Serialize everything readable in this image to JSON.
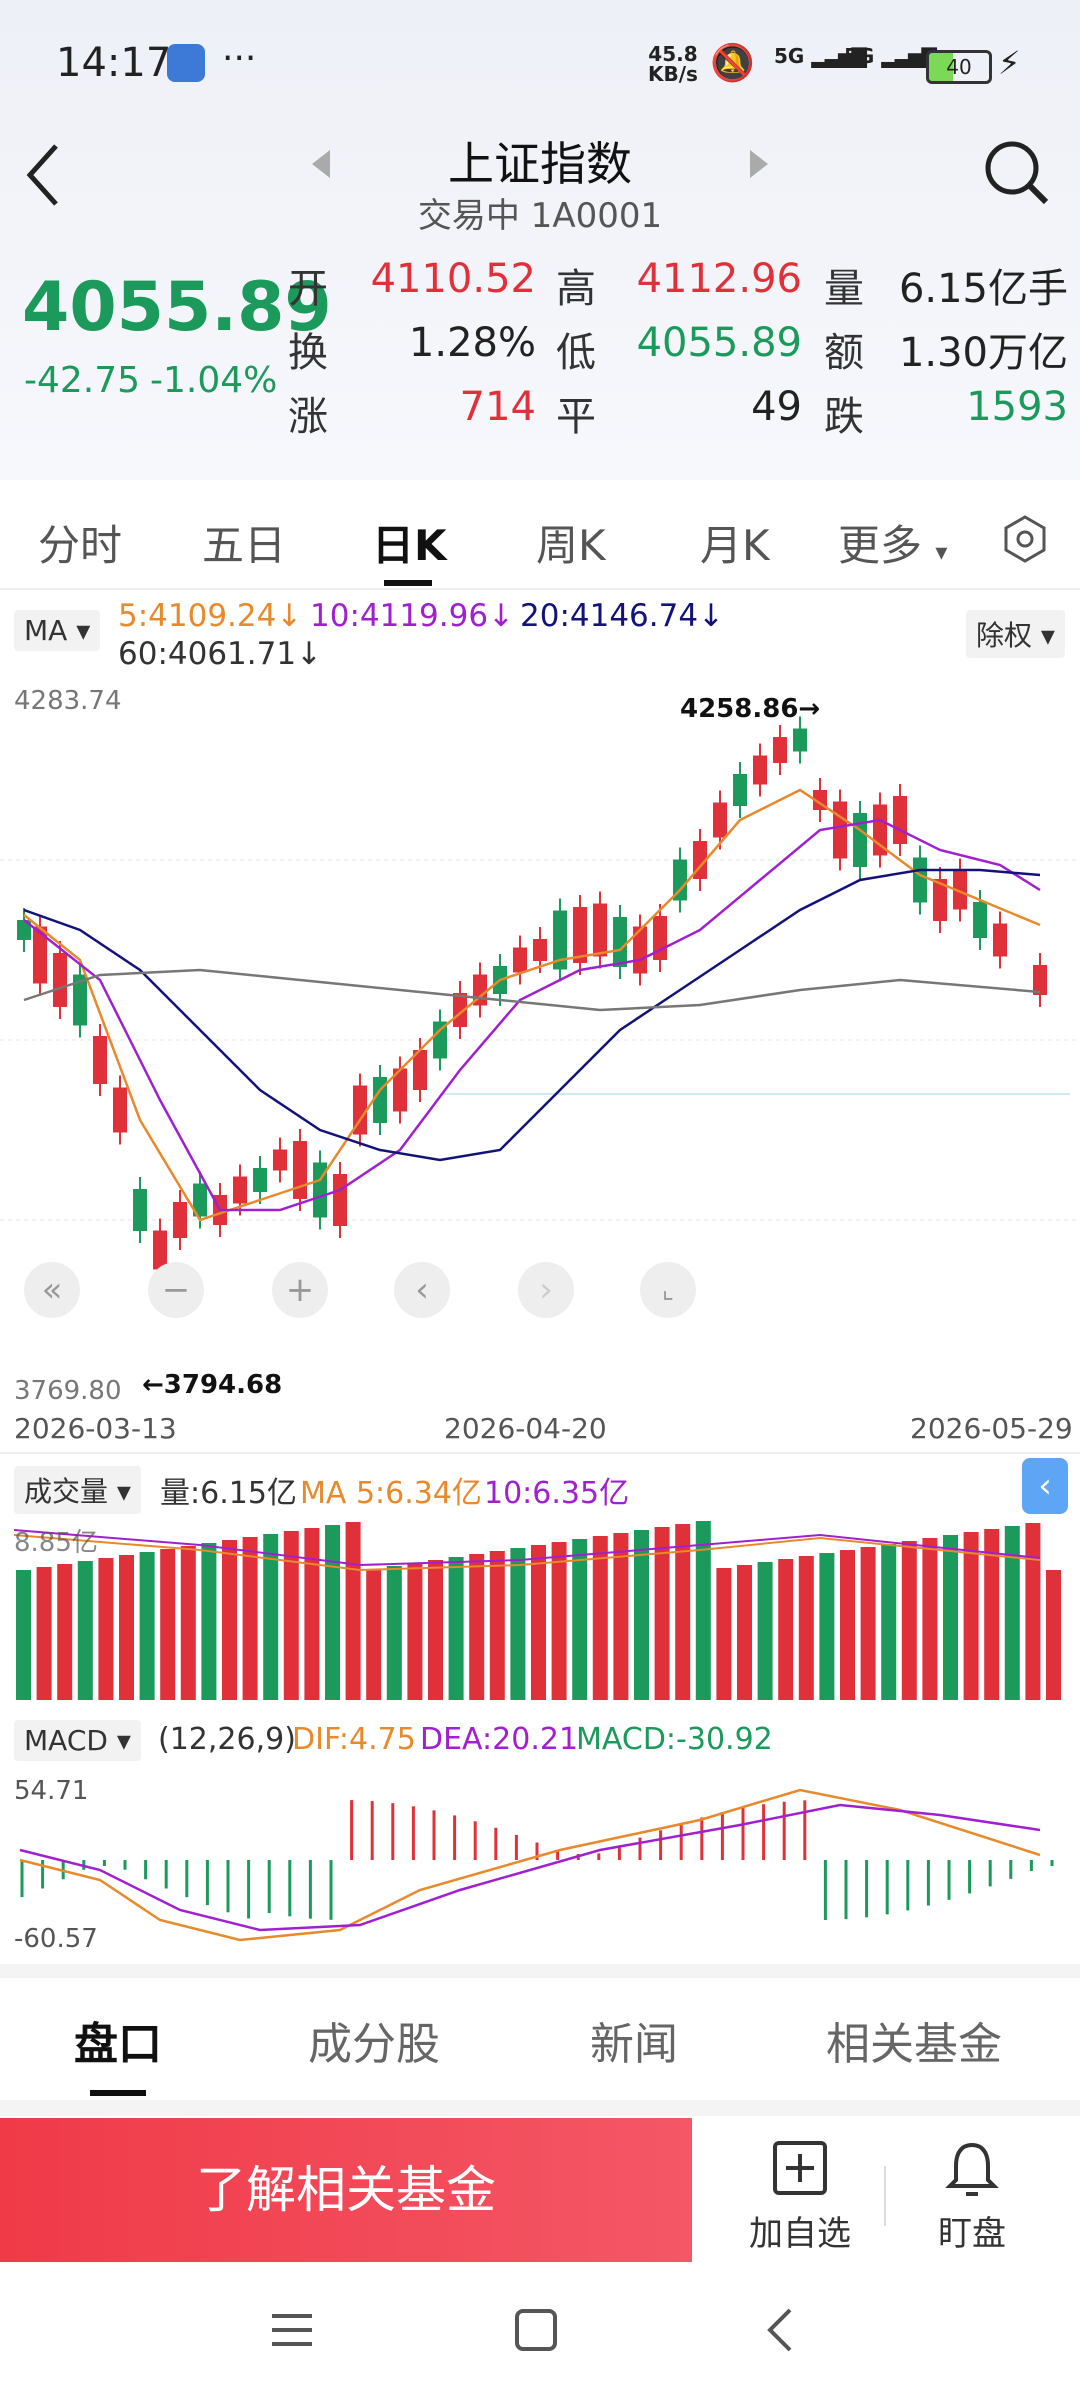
{
  "status_bar": {
    "time": "14:17",
    "net_speed": "45.8",
    "net_unit": "KB/s",
    "sig1": "5G",
    "sig2": "5G",
    "battery": "40"
  },
  "header": {
    "title": "上证指数",
    "subtitle": "交易中 1A0001"
  },
  "quote": {
    "price": "4055.89",
    "change": "-42.75",
    "change_pct": "-1.04%",
    "rows": [
      [
        {
          "l": "开",
          "v": "4110.52",
          "c": "red"
        },
        {
          "l": "高",
          "v": "4112.96",
          "c": "red"
        },
        {
          "l": "量",
          "v": "6.15亿手",
          "c": "dark"
        }
      ],
      [
        {
          "l": "换",
          "v": "1.28%",
          "c": "dark"
        },
        {
          "l": "低",
          "v": "4055.89",
          "c": "green"
        },
        {
          "l": "额",
          "v": "1.30万亿",
          "c": "dark"
        }
      ],
      [
        {
          "l": "涨",
          "v": "714",
          "c": "red"
        },
        {
          "l": "平",
          "v": "49",
          "c": "dark"
        },
        {
          "l": "跌",
          "v": "1593",
          "c": "green"
        }
      ]
    ]
  },
  "tabs": [
    "分时",
    "五日",
    "日K",
    "周K",
    "月K",
    "更多"
  ],
  "ma_bar": {
    "selector": "MA",
    "ma5": "5:4109.24↓",
    "ma10": "10:4119.96↓",
    "ma20": "20:4146.74↓",
    "ma60": "60:4061.71↓",
    "adjust": "除权"
  },
  "kline": {
    "y_top": "4283.74",
    "y_bottom": "3769.80",
    "max_label": "4258.86→",
    "min_label": "←3794.68",
    "dates": [
      "2026-03-13",
      "2026-04-20",
      "2026-05-29"
    ]
  },
  "volume": {
    "selector": "成交量",
    "vol": "量:6.15亿",
    "ma5": "MA 5:6.34亿",
    "ma10": "10:6.35亿",
    "y_label": "8.85亿"
  },
  "macd": {
    "selector": "MACD",
    "params": "(12,26,9)",
    "dif": "DIF:4.75",
    "dea": "DEA:20.21",
    "macd": "MACD:-30.92",
    "y_top": "54.71",
    "y_bottom": "-60.57"
  },
  "bottom_tabs": [
    "盘口",
    "成分股",
    "新闻",
    "相关基金"
  ],
  "actions": {
    "fund_button": "了解相关基金",
    "add_watch": "加自选",
    "watch": "盯盘"
  },
  "colors": {
    "up": "#e0313b",
    "down": "#1b9a5b",
    "ma5": "#e8892b",
    "ma10": "#a020d0",
    "ma20": "#12127a",
    "ma60": "#777777"
  }
}
